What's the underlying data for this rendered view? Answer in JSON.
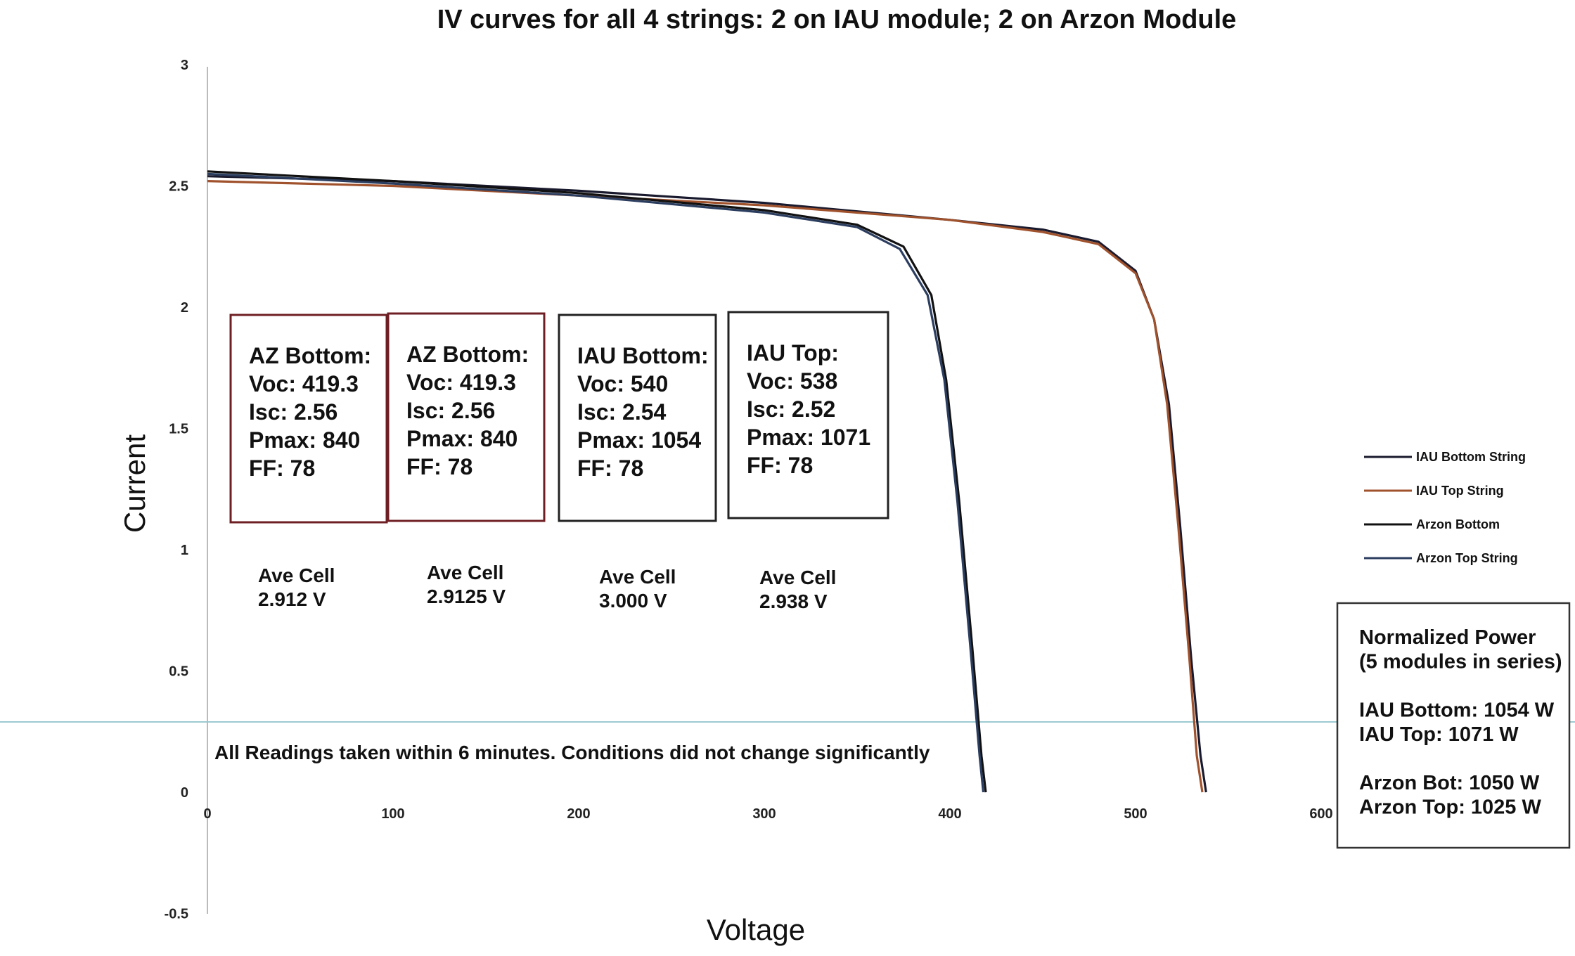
{
  "chart_data": {
    "type": "line",
    "title": "IV curves for all 4 strings: 2 on IAU module; 2 on Arzon Module",
    "xlabel": "Voltage",
    "ylabel": "Current",
    "xlim": [
      0,
      600
    ],
    "ylim": [
      -0.5,
      3
    ],
    "x_ticks": [
      "0",
      "100",
      "200",
      "300",
      "400",
      "500",
      "600"
    ],
    "y_ticks": [
      "-0.5",
      "0",
      "0.5",
      "1",
      "1.5",
      "2",
      "2.5",
      "3"
    ],
    "grid": false,
    "legend_position": "right",
    "series": [
      {
        "name": "IAU Bottom String",
        "color": "#1a1a2e",
        "points": [
          [
            0,
            2.54
          ],
          [
            100,
            2.52
          ],
          [
            200,
            2.48
          ],
          [
            300,
            2.43
          ],
          [
            400,
            2.36
          ],
          [
            450,
            2.32
          ],
          [
            480,
            2.27
          ],
          [
            500,
            2.15
          ],
          [
            510,
            1.95
          ],
          [
            518,
            1.6
          ],
          [
            524,
            1.1
          ],
          [
            530,
            0.55
          ],
          [
            535,
            0.15
          ],
          [
            538,
            0
          ]
        ]
      },
      {
        "name": "IAU Top String",
        "color": "#a0522d",
        "points": [
          [
            0,
            2.52
          ],
          [
            100,
            2.5
          ],
          [
            200,
            2.46
          ],
          [
            300,
            2.42
          ],
          [
            400,
            2.36
          ],
          [
            450,
            2.31
          ],
          [
            480,
            2.26
          ],
          [
            500,
            2.14
          ],
          [
            510,
            1.95
          ],
          [
            517,
            1.6
          ],
          [
            523,
            1.1
          ],
          [
            529,
            0.55
          ],
          [
            533,
            0.15
          ],
          [
            536,
            0
          ]
        ]
      },
      {
        "name": "Arzon Bottom",
        "color": "#111111",
        "points": [
          [
            0,
            2.56
          ],
          [
            100,
            2.52
          ],
          [
            200,
            2.47
          ],
          [
            300,
            2.4
          ],
          [
            350,
            2.34
          ],
          [
            375,
            2.25
          ],
          [
            390,
            2.05
          ],
          [
            398,
            1.7
          ],
          [
            405,
            1.2
          ],
          [
            412,
            0.6
          ],
          [
            417,
            0.15
          ],
          [
            419.3,
            0
          ]
        ]
      },
      {
        "name": "Arzon Top String",
        "color": "#2c3e60",
        "points": [
          [
            0,
            2.55
          ],
          [
            100,
            2.51
          ],
          [
            200,
            2.46
          ],
          [
            300,
            2.39
          ],
          [
            350,
            2.33
          ],
          [
            373,
            2.24
          ],
          [
            388,
            2.05
          ],
          [
            397,
            1.7
          ],
          [
            404,
            1.2
          ],
          [
            411,
            0.6
          ],
          [
            416,
            0.15
          ],
          [
            418,
            0
          ]
        ]
      }
    ],
    "annotations": {
      "boxes": [
        {
          "lines": [
            "AZ Bottom:",
            "Voc: 419.3",
            "Isc: 2.56",
            "Pmax: 840",
            "FF: 78"
          ],
          "border": "#6e1f24"
        },
        {
          "lines": [
            "AZ Bottom:",
            "Voc: 419.3",
            "Isc: 2.56",
            "Pmax: 840",
            "FF: 78"
          ],
          "border": "#6e1f24"
        },
        {
          "lines": [
            "IAU Bottom:",
            "Voc: 540",
            "Isc: 2.54",
            "Pmax: 1054",
            "FF: 78"
          ],
          "border": "#222222"
        },
        {
          "lines": [
            "IAU Top:",
            "Voc: 538",
            "Isc: 2.52",
            "Pmax: 1071",
            "FF: 78"
          ],
          "border": "#222222"
        }
      ],
      "cells": [
        {
          "lines": [
            "Ave Cell",
            "2.912 V"
          ]
        },
        {
          "lines": [
            "Ave Cell",
            "2.9125 V"
          ]
        },
        {
          "lines": [
            "Ave Cell",
            "3.000 V"
          ]
        },
        {
          "lines": [
            "Ave Cell",
            "2.938 V"
          ]
        }
      ],
      "note": "All Readings taken within 6 minutes. Conditions did not change significantly",
      "power_box": {
        "lines": [
          "Normalized Power",
          "(5 modules in series)",
          "",
          "IAU Bottom: 1054 W",
          "IAU Top: 1071 W",
          "",
          "Arzon Bot: 1050 W",
          "Arzon Top: 1025 W"
        ]
      }
    }
  }
}
